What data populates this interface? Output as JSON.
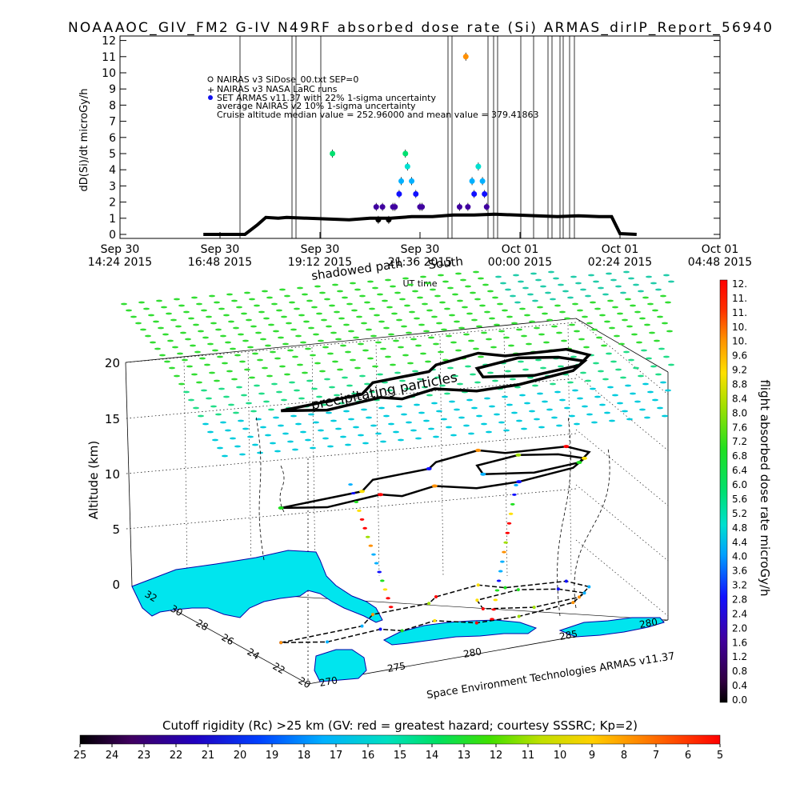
{
  "title": "NOAAAOC_GIV_FM2 G-IV    N49RF  absorbed dose rate (Si) ARMAS_dirIP_Report_56940",
  "credit": "Space Environment Technologies ARMAS v11.37",
  "colors": {
    "mission_track": "#000000",
    "cyan_land": "#00e5ee",
    "green_particles": "#33dd33"
  },
  "chart_data": [
    {
      "type": "scatter",
      "title": "NOAAAOC_GIV_FM2 G-IV    N49RF  absorbed dose rate (Si) ARMAS_dirIP_Report_56940",
      "ylabel": "dD(Si)/dt microGy/h",
      "xlabel": "UT time",
      "ylim": [
        0,
        12
      ],
      "yticks": [
        "0",
        "1",
        "2",
        "3",
        "4",
        "5",
        "6",
        "7",
        "8",
        "9",
        "10",
        "11",
        "12"
      ],
      "xticks": [
        {
          "line1": "Sep 30",
          "line2": "14:24 2015"
        },
        {
          "line1": "Sep 30",
          "line2": "16:48 2015"
        },
        {
          "line1": "Sep 30",
          "line2": "19:12 2015"
        },
        {
          "line1": "Sep 30",
          "line2": "21:36 2015"
        },
        {
          "line1": "Oct 01",
          "line2": "00:00 2015"
        },
        {
          "line1": "Oct 01",
          "line2": "02:24 2015"
        },
        {
          "line1": "Oct 01",
          "line2": "04:48 2015"
        }
      ],
      "legend": [
        "NAIRAS v3 SiDose_00.txt SEP=0",
        "NAIRAS v3 NASA LaRC runs",
        "SET ARMAS v11.37 with 22% 1-sigma uncertainty",
        "average NAIRAS v2 10% 1-sigma uncertainty",
        "Cruise altitude median value = 252.96000 and mean value = 379.41863"
      ],
      "legend_position": "top-left",
      "overlay_text": [
        "South",
        "shadowed path"
      ],
      "series": [
        {
          "name": "NAIRAS v3 SiDose_00.txt SEP=0",
          "x_hours": [
            2.0,
            2.5,
            3.0,
            3.3,
            3.5,
            3.8,
            4.0,
            4.5,
            5.0,
            5.5,
            6.0,
            6.5,
            7.0,
            7.5,
            8.0,
            8.5,
            9.0,
            9.5,
            10.0,
            10.5,
            11.0,
            11.5,
            11.8,
            12.0,
            12.4
          ],
          "y": [
            0.0,
            0.0,
            0.0,
            0.6,
            1.05,
            1.0,
            1.05,
            1.0,
            0.95,
            0.9,
            1.0,
            1.0,
            1.1,
            1.1,
            1.2,
            1.2,
            1.25,
            1.2,
            1.15,
            1.1,
            1.15,
            1.1,
            1.1,
            0.05,
            0.0
          ]
        },
        {
          "name": "SET ARMAS v11.37 with 22% 1-sigma uncertainty",
          "x_hours": [
            5.1,
            6.15,
            6.2,
            6.3,
            6.45,
            6.55,
            6.6,
            6.7,
            6.75,
            6.85,
            6.9,
            7.0,
            7.1,
            7.2,
            7.25,
            8.15,
            8.3,
            8.35,
            8.45,
            8.5,
            8.6,
            8.7,
            8.75,
            8.8
          ],
          "y": [
            5.0,
            1.7,
            0.9,
            1.7,
            0.9,
            1.7,
            1.7,
            2.5,
            3.3,
            5.0,
            4.2,
            3.3,
            2.5,
            1.7,
            1.7,
            1.7,
            11.0,
            1.7,
            3.3,
            2.5,
            4.2,
            3.3,
            2.5,
            1.7
          ],
          "colorbar_value": [
            5.0,
            1.7,
            0.9,
            1.7,
            0.9,
            1.7,
            1.7,
            2.5,
            3.3,
            5.0,
            4.2,
            3.3,
            2.5,
            1.7,
            1.7,
            1.7,
            11.0,
            1.7,
            3.3,
            2.5,
            4.2,
            3.3,
            2.5,
            1.7
          ]
        }
      ]
    },
    {
      "type": "scatter",
      "subtype": "3d-trajectory",
      "zlabel": "Altitude (km)",
      "zticks": [
        "0",
        "5",
        "10",
        "15",
        "20"
      ],
      "lat_ticks": [
        "32",
        "30",
        "28",
        "26",
        "24",
        "22",
        "20"
      ],
      "lon_ticks": [
        "270",
        "275",
        "280",
        "285",
        "280"
      ],
      "overlay_text": [
        "precipitating particles"
      ],
      "colorbar": {
        "label": "flight absorbed dose rate microGy/h",
        "ticks": [
          "12.",
          "11.",
          "11.",
          "10.",
          "10.",
          "9.6",
          "9.2",
          "8.8",
          "8.4",
          "8.0",
          "7.6",
          "7.2",
          "6.8",
          "6.4",
          "6.0",
          "5.6",
          "5.2",
          "4.8",
          "4.4",
          "4.0",
          "3.6",
          "3.2",
          "2.8",
          "2.4",
          "2.0",
          "1.6",
          "1.2",
          "0.8",
          "0.4",
          "0.0"
        ]
      },
      "track_vertices_lonlat": [
        [
          271.5,
          24.3
        ],
        [
          275.0,
          24.5
        ],
        [
          276.0,
          25.4
        ],
        [
          278.4,
          25.5
        ],
        [
          279.0,
          26.0
        ],
        [
          281.0,
          26.4
        ],
        [
          281.7,
          25.7
        ],
        [
          284.0,
          25.3
        ],
        [
          284.4,
          24.4
        ],
        [
          283.5,
          23.6
        ],
        [
          281.5,
          23.4
        ],
        [
          279.8,
          24.1
        ],
        [
          280.1,
          25.0
        ],
        [
          282.0,
          25.3
        ],
        [
          283.3,
          24.7
        ],
        [
          283.9,
          23.9
        ],
        [
          283.0,
          23.2
        ],
        [
          280.5,
          22.8
        ],
        [
          278.8,
          22.9
        ],
        [
          277.6,
          23.8
        ],
        [
          276.0,
          23.4
        ],
        [
          275.4,
          23.9
        ],
        [
          273.0,
          23.6
        ],
        [
          271.5,
          24.3
        ]
      ]
    },
    {
      "type": "heatmap",
      "subtype": "colorbar",
      "title": "Cutoff rigidity (Rc) >25 km (GV: red = greatest hazard; courtesy SSSRC; Kp=2)",
      "ticks": [
        "25",
        "24",
        "23",
        "22",
        "21",
        "20",
        "19",
        "18",
        "17",
        "16",
        "15",
        "14",
        "13",
        "12",
        "11",
        "10",
        "9",
        "8",
        "7",
        "6",
        "5"
      ]
    }
  ]
}
